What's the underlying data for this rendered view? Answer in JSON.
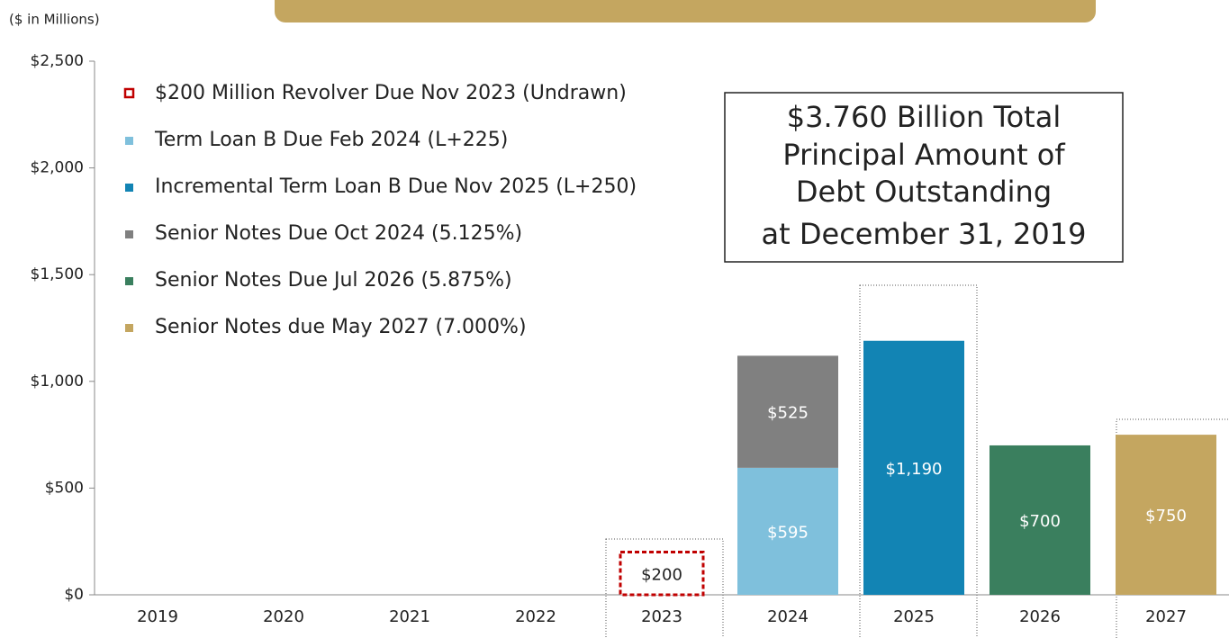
{
  "chart_data": {
    "type": "stacked_bar",
    "y_label": "($ in Millions)",
    "annotation": [
      "$3.760 Billion Total",
      "Principal Amount of",
      "Debt Outstanding",
      "at December 31, 2019"
    ],
    "categories": [
      "2019",
      "2020",
      "2021",
      "2022",
      "2023",
      "2024",
      "2025",
      "2026",
      "2027"
    ],
    "series": [
      {
        "name": "$200 Million Revolver Due Nov 2023 (Undrawn)",
        "color": "#c00000",
        "style": "dashed",
        "values": [
          null,
          null,
          null,
          null,
          200,
          null,
          null,
          null,
          null
        ],
        "value_labels": [
          null,
          null,
          null,
          null,
          "$200",
          null,
          null,
          null,
          null
        ]
      },
      {
        "name": "Term Loan B Due Feb 2024 (L+225)",
        "color": "#7fc0dc",
        "values": [
          null,
          null,
          null,
          null,
          null,
          595,
          null,
          null,
          null
        ],
        "value_labels": [
          null,
          null,
          null,
          null,
          null,
          "$595",
          null,
          null,
          null
        ]
      },
      {
        "name": "Incremental Term Loan B Due Nov 2025 (L+250)",
        "color": "#1284b4",
        "values": [
          null,
          null,
          null,
          null,
          null,
          null,
          1190,
          null,
          null
        ],
        "value_labels": [
          null,
          null,
          null,
          null,
          null,
          null,
          "$1,190",
          null,
          null
        ]
      },
      {
        "name": "Senior Notes Due Oct 2024 (5.125%)",
        "color": "#808080",
        "values": [
          null,
          null,
          null,
          null,
          null,
          525,
          null,
          null,
          null
        ],
        "value_labels": [
          null,
          null,
          null,
          null,
          null,
          "$525",
          null,
          null,
          null
        ]
      },
      {
        "name": "Senior Notes Due Jul 2026 (5.875%)",
        "color": "#3a7f5e",
        "values": [
          null,
          null,
          null,
          null,
          null,
          null,
          null,
          700,
          null
        ],
        "value_labels": [
          null,
          null,
          null,
          null,
          null,
          null,
          null,
          "$700",
          null
        ]
      },
      {
        "name": "Senior Notes due May 2027 (7.000%)",
        "color": "#c4a660",
        "values": [
          null,
          null,
          null,
          null,
          null,
          null,
          null,
          null,
          750
        ],
        "value_labels": [
          null,
          null,
          null,
          null,
          null,
          null,
          null,
          null,
          "$750"
        ]
      }
    ],
    "ylim": [
      0,
      2500
    ],
    "yticks": [
      {
        "value": 0,
        "label": "$0"
      },
      {
        "value": 500,
        "label": "$500"
      },
      {
        "value": 1000,
        "label": "$1,000"
      },
      {
        "value": 1500,
        "label": "$1,500"
      },
      {
        "value": 2000,
        "label": "$2,000"
      },
      {
        "value": 2500,
        "label": "$2,500"
      }
    ],
    "legend": "top-left"
  }
}
